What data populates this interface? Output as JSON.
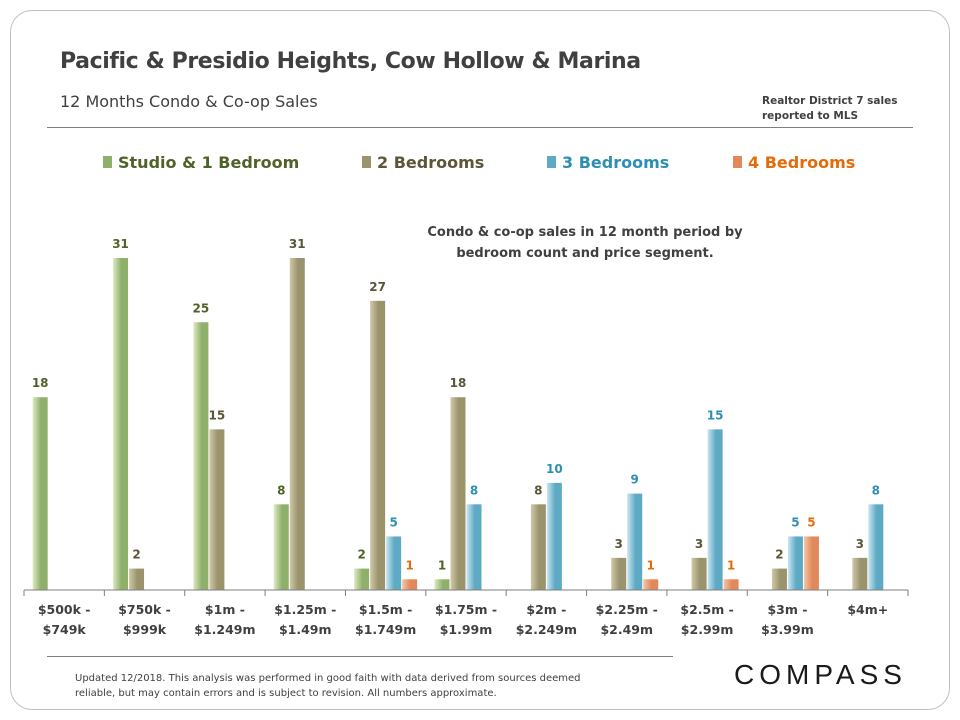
{
  "header": {
    "title": "Pacific & Presidio Heights, Cow Hollow & Marina",
    "subtitle": "12 Months  Condo & Co-op Sales",
    "source_note_line1": "Realtor District 7 sales",
    "source_note_line2": "reported to MLS"
  },
  "annotation": {
    "line1": "Condo & co-op sales in 12 month period by",
    "line2": "bedroom count and price segment."
  },
  "footer": {
    "line1": "Updated 12/2018.  This analysis was performed in good faith with data  derived from sources deemed",
    "line2": "reliable, but may contain errors and is subject to revision. All numbers approximate.",
    "brand": "COMPASS"
  },
  "colors": {
    "studio": "#8fb06a",
    "two_bed": "#9a936c",
    "three_bed": "#5ea9c4",
    "four_bed": "#e1895a",
    "studio_label": "#4f6228",
    "two_bed_label": "#5c5538",
    "three_bed_label": "#2e8fb3",
    "four_bed_label": "#e36c09"
  },
  "chart_data": {
    "type": "bar",
    "categories": [
      [
        "$500k -",
        "$749k"
      ],
      [
        "$750k -",
        "$999k"
      ],
      [
        "$1m -",
        "$1.249m"
      ],
      [
        "$1.25m -",
        "$1.49m"
      ],
      [
        "$1.5m -",
        "$1.749m"
      ],
      [
        "$1.75m -",
        "$1.99m"
      ],
      [
        "$2m -",
        "$2.249m"
      ],
      [
        "$2.25m -",
        "$2.49m"
      ],
      [
        "$2.5m -",
        "$2.99m"
      ],
      [
        "$3m -",
        "$3.99m"
      ],
      [
        "$4m+",
        ""
      ]
    ],
    "series": [
      {
        "name": "Studio & 1 Bedroom",
        "key": "studio",
        "values": [
          18,
          31,
          25,
          8,
          2,
          1,
          null,
          null,
          null,
          null,
          null
        ]
      },
      {
        "name": "2 Bedrooms",
        "key": "two_bed",
        "values": [
          null,
          2,
          15,
          31,
          27,
          18,
          8,
          3,
          3,
          2,
          3
        ]
      },
      {
        "name": "3 Bedrooms",
        "key": "three_bed",
        "values": [
          null,
          null,
          null,
          null,
          5,
          8,
          10,
          9,
          15,
          5,
          8
        ]
      },
      {
        "name": "4 Bedrooms",
        "key": "four_bed",
        "values": [
          null,
          null,
          null,
          null,
          1,
          null,
          null,
          1,
          1,
          5,
          null
        ]
      }
    ],
    "ylim": [
      0,
      31
    ],
    "grid": false,
    "legend": "top"
  }
}
